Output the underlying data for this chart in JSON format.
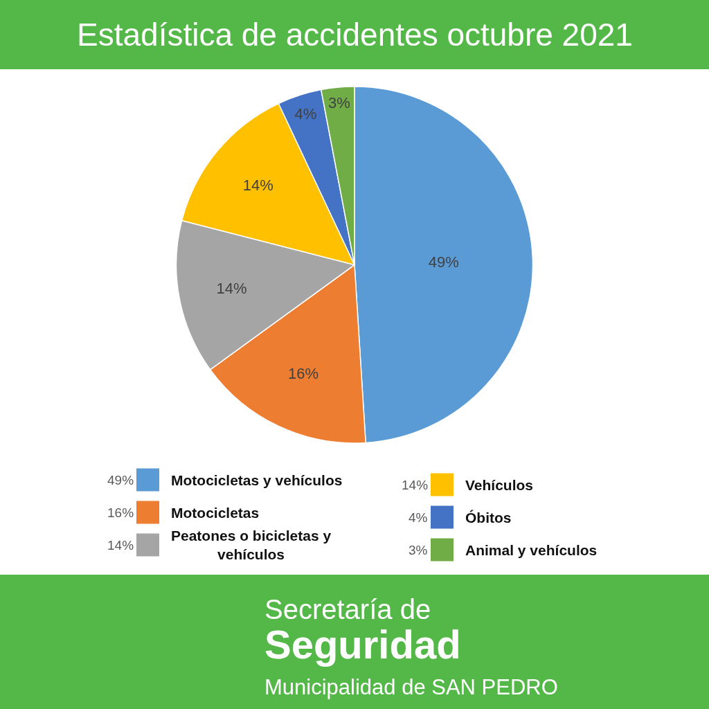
{
  "chart_data": {
    "type": "pie",
    "title": "Estadística de accidentes octubre 2021",
    "categories": [
      "Motocicletas y vehículos",
      "Motocicletas",
      "Peatones o bicicletas y vehículos",
      "Vehículos",
      "Óbitos",
      "Animal y vehículos"
    ],
    "values": [
      49,
      16,
      14,
      14,
      4,
      3
    ],
    "value_labels": [
      "49%",
      "16%",
      "14%",
      "14%",
      "4%",
      "3%"
    ],
    "colors": [
      "#5b9bd5",
      "#ed7d31",
      "#a5a5a5",
      "#ffc000",
      "#4472c4",
      "#70ad47"
    ],
    "legend": "bottom",
    "annotations": [
      "Secretaría de",
      "Seguridad",
      "Municipalidad de SAN PEDRO"
    ]
  }
}
